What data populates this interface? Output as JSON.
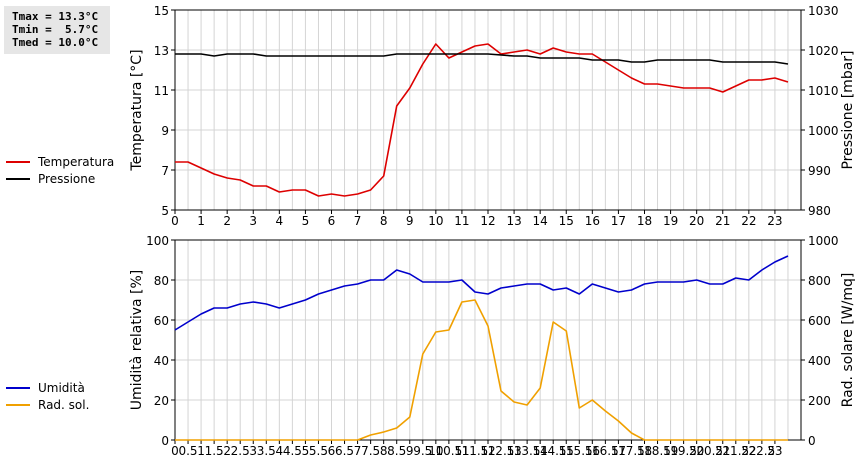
{
  "stats": {
    "tmax": "Tmax = 13.3°C",
    "tmin": "Tmin =  5.7°C",
    "tmed": "Tmed = 10.0°C"
  },
  "chart_data": [
    {
      "type": "line",
      "title": "",
      "xlabel": "",
      "ylabel_left": "Temperatura [°C]",
      "ylabel_right": "Pressione [mbar]",
      "xlim": [
        0,
        24
      ],
      "ylim_left": [
        5,
        15
      ],
      "ylim_right": [
        980,
        1030
      ],
      "x_ticks": [
        0,
        1,
        2,
        3,
        4,
        5,
        6,
        7,
        8,
        9,
        10,
        11,
        12,
        13,
        14,
        15,
        16,
        17,
        18,
        19,
        20,
        21,
        22,
        23
      ],
      "yticks_left": [
        5,
        7,
        9,
        11,
        13,
        15
      ],
      "yticks_right": [
        980,
        990,
        1000,
        1010,
        1020,
        1030
      ],
      "grid": true,
      "legend": "left",
      "series": [
        {
          "name": "Temperatura",
          "axis": "left",
          "color": "#dd0000",
          "x": [
            0,
            0.5,
            1,
            1.5,
            2,
            2.5,
            3,
            3.5,
            4,
            4.5,
            5,
            5.5,
            6,
            6.5,
            7,
            7.5,
            8,
            8.5,
            9,
            9.5,
            10,
            10.5,
            11,
            11.5,
            12,
            12.5,
            13,
            13.5,
            14,
            14.5,
            15,
            15.5,
            16,
            16.5,
            17,
            17.5,
            18,
            18.5,
            19,
            19.5,
            20,
            20.5,
            21,
            21.5,
            22,
            22.5,
            23,
            23.5
          ],
          "y": [
            7.4,
            7.4,
            7.1,
            6.8,
            6.6,
            6.5,
            6.2,
            6.2,
            5.9,
            6.0,
            6.0,
            5.7,
            5.8,
            5.7,
            5.8,
            6.0,
            6.7,
            10.2,
            11.1,
            12.3,
            13.3,
            12.6,
            12.9,
            13.2,
            13.3,
            12.8,
            12.9,
            13.0,
            12.8,
            13.1,
            12.9,
            12.8,
            12.8,
            12.4,
            12.0,
            11.6,
            11.3,
            11.3,
            11.2,
            11.1,
            11.1,
            11.1,
            10.9,
            11.2,
            11.5,
            11.5,
            11.6,
            11.4
          ]
        },
        {
          "name": "Pressione",
          "axis": "right",
          "color": "#000000",
          "x": [
            0,
            1,
            1.5,
            2,
            3,
            3.5,
            4,
            5,
            6,
            7,
            8,
            8.5,
            9,
            10,
            11,
            12,
            13,
            13.5,
            14,
            14.5,
            15,
            15.5,
            16,
            16.5,
            17,
            17.5,
            18,
            18.5,
            19,
            19.5,
            20,
            20.5,
            21,
            21.5,
            22,
            22.5,
            23,
            23.5
          ],
          "y": [
            1019,
            1019,
            1018.5,
            1019,
            1019,
            1018.5,
            1018.5,
            1018.5,
            1018.5,
            1018.5,
            1018.5,
            1019,
            1019,
            1019,
            1019,
            1019,
            1018.5,
            1018.5,
            1018,
            1018,
            1018,
            1018,
            1017.5,
            1017.5,
            1017.5,
            1017,
            1017,
            1017.5,
            1017.5,
            1017.5,
            1017.5,
            1017.5,
            1017,
            1017,
            1017,
            1017,
            1017,
            1016.5
          ]
        }
      ]
    },
    {
      "type": "line",
      "title": "",
      "xlabel": "",
      "ylabel_left": "Umidità relativa [%]",
      "ylabel_right": "Rad. solare [W/mq]",
      "xlim": [
        0,
        24
      ],
      "ylim_left": [
        0,
        100
      ],
      "ylim_right": [
        0,
        1000
      ],
      "x_ticks": [
        0,
        0.5,
        1,
        1.5,
        2,
        2.5,
        3,
        3.5,
        4,
        4.5,
        5,
        5.5,
        6,
        6.5,
        7,
        7.5,
        8,
        8.5,
        9,
        9.5,
        10,
        10.5,
        11,
        11.5,
        12,
        12.5,
        13,
        13.5,
        14,
        14.5,
        15,
        15.5,
        16,
        16.5,
        17,
        17.5,
        18,
        18.5,
        19,
        19.5,
        20,
        20.5,
        21,
        21.5,
        22,
        22.5,
        23
      ],
      "x_tick_labels": [
        "0",
        "0.5",
        "1",
        "1.5",
        "2",
        "2.5",
        "3",
        "3.5",
        "4",
        "4.5",
        "5",
        "5.5",
        "6",
        "6.5",
        "7",
        "7.5",
        "8",
        "8.5",
        "9",
        "9.5",
        "10",
        "10.5",
        "11",
        "11.5",
        "12",
        "12.5",
        "13",
        "13.5",
        "14",
        "14.5",
        "15",
        "15.5",
        "16",
        "16.5",
        "17",
        "17.5",
        "18",
        "18.5",
        "19",
        "19.5",
        "20",
        "20.5",
        "21",
        "21.5",
        "22",
        "22.5",
        "23"
      ],
      "yticks_left": [
        0,
        20,
        40,
        60,
        80,
        100
      ],
      "yticks_right": [
        0,
        200,
        400,
        600,
        800,
        1000
      ],
      "grid": true,
      "legend": "left",
      "series": [
        {
          "name": "Umidità",
          "axis": "left",
          "color": "#0000cc",
          "x": [
            0,
            0.5,
            1,
            1.5,
            2,
            2.5,
            3,
            3.5,
            4,
            4.5,
            5,
            5.5,
            6,
            6.5,
            7,
            7.5,
            8,
            8.5,
            9,
            9.5,
            10,
            10.5,
            11,
            11.5,
            12,
            12.5,
            13,
            13.5,
            14,
            14.5,
            15,
            15.5,
            16,
            16.5,
            17,
            17.5,
            18,
            18.5,
            19,
            19.5,
            20,
            20.5,
            21,
            21.5,
            22,
            22.5,
            23,
            23.5
          ],
          "y": [
            55,
            59,
            63,
            66,
            66,
            68,
            69,
            68,
            66,
            68,
            70,
            73,
            75,
            77,
            78,
            80,
            80,
            85,
            83,
            79,
            79,
            79,
            80,
            74,
            73,
            76,
            77,
            78,
            78,
            75,
            76,
            73,
            78,
            76,
            74,
            75,
            78,
            79,
            79,
            79,
            80,
            78,
            78,
            81,
            80,
            85,
            89,
            92
          ]
        },
        {
          "name": "Rad. sol.",
          "axis": "right",
          "color": "#f0a000",
          "x": [
            0,
            1,
            2,
            3,
            4,
            5,
            6,
            7,
            7.5,
            8,
            8.5,
            9,
            9.5,
            10,
            10.5,
            11,
            11.5,
            12,
            12.5,
            13,
            13.5,
            14,
            14.5,
            15,
            15.5,
            16,
            16.5,
            17,
            17.5,
            18,
            18.5,
            19,
            19.5,
            20,
            20.5,
            21,
            21.5,
            22,
            22.5,
            23,
            23.5
          ],
          "y": [
            0,
            0,
            0,
            0,
            0,
            0,
            0,
            0,
            25,
            40,
            60,
            115,
            430,
            540,
            550,
            690,
            700,
            570,
            245,
            190,
            175,
            260,
            590,
            545,
            160,
            200,
            145,
            95,
            35,
            0,
            0,
            0,
            0,
            0,
            0,
            0,
            0,
            0,
            0,
            0,
            0
          ]
        }
      ]
    }
  ]
}
